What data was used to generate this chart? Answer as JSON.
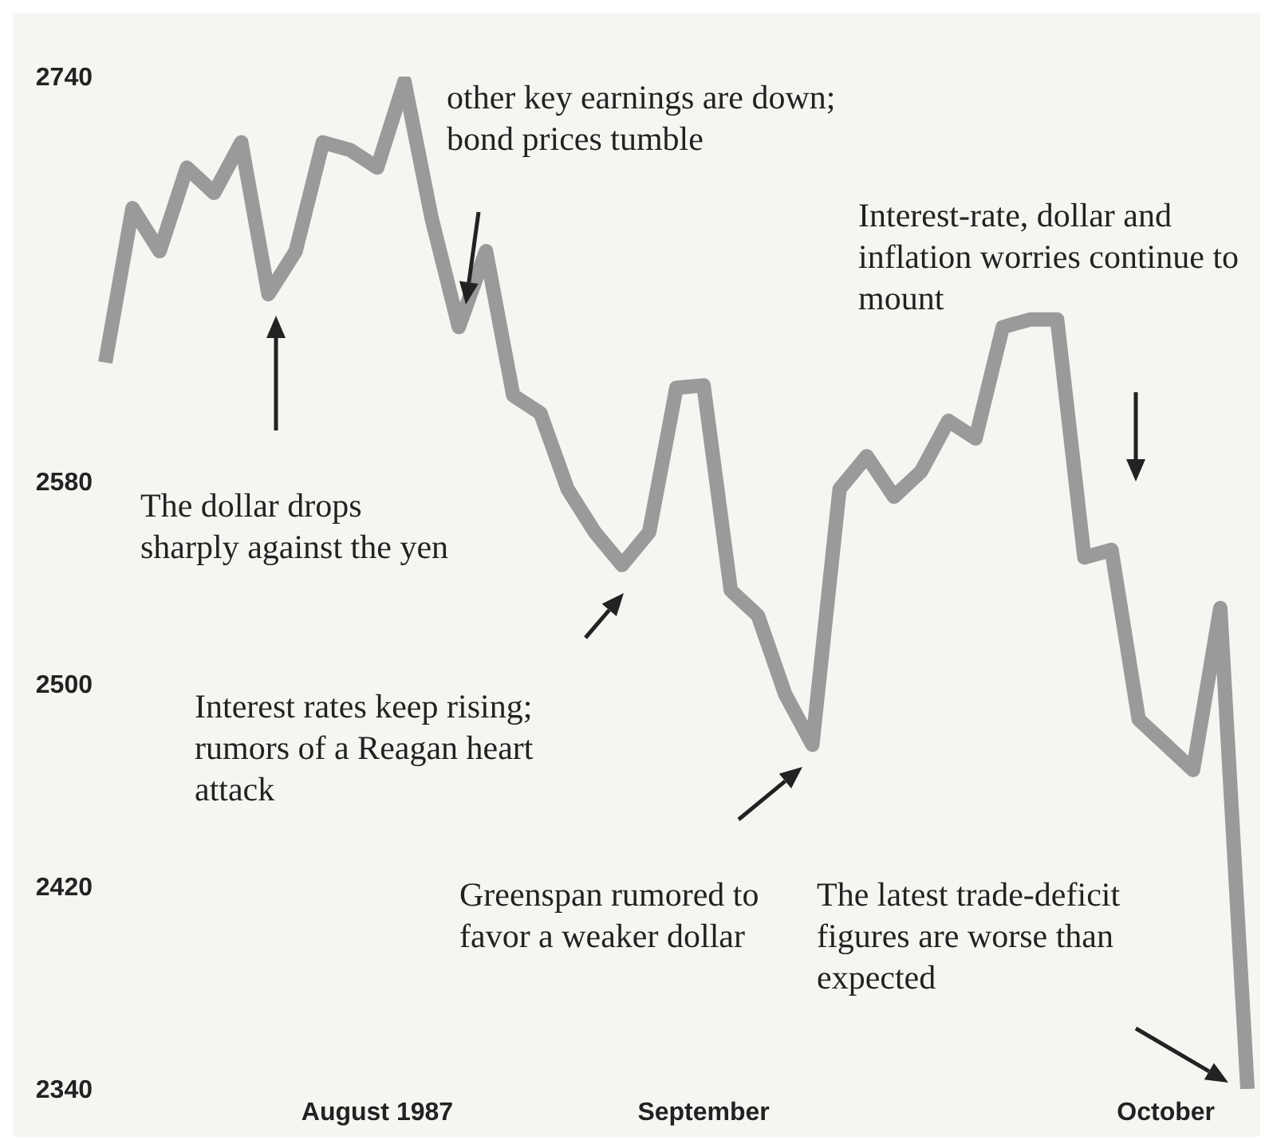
{
  "chart_data": {
    "type": "line",
    "categories": [
      null,
      null,
      null,
      null,
      null,
      null,
      null,
      null,
      null,
      null,
      "August 1987",
      null,
      null,
      null,
      null,
      null,
      null,
      null,
      null,
      null,
      null,
      null,
      "September",
      null,
      null,
      null,
      null,
      null,
      null,
      null,
      null,
      null,
      null,
      null,
      null,
      null,
      null,
      null,
      null,
      "October",
      null,
      null,
      null
    ],
    "series": [
      {
        "color": "#9a9a9a",
        "values": [
          2627,
          2688,
          2671,
          2704,
          2694,
          2714,
          2654,
          2671,
          2714,
          2711,
          2704,
          2738,
          2684,
          2641,
          2671,
          2614,
          2607,
          2577,
          2560,
          2547,
          2560,
          2617,
          2618,
          2537,
          2527,
          2496,
          2476,
          2577,
          2590,
          2574,
          2584,
          2604,
          2597,
          2641,
          2644,
          2644,
          2550,
          2553,
          2486,
          2476,
          2466,
          2530,
          2340
        ]
      }
    ],
    "ylim": [
      2340,
      2740
    ],
    "yticks": [
      2340,
      2420,
      2500,
      2580,
      2740
    ],
    "annotations": [
      "other key earnings are down; bond prices tumble",
      "Interest-rate, dollar and inflation worries continue to mount",
      "The dollar drops sharply against the yen",
      "Interest rates keep rising; rumors of a Reagan heart attack",
      "Greenspan rumored to favor a weaker dollar",
      "The latest trade-deficit figures are worse than expected"
    ]
  }
}
